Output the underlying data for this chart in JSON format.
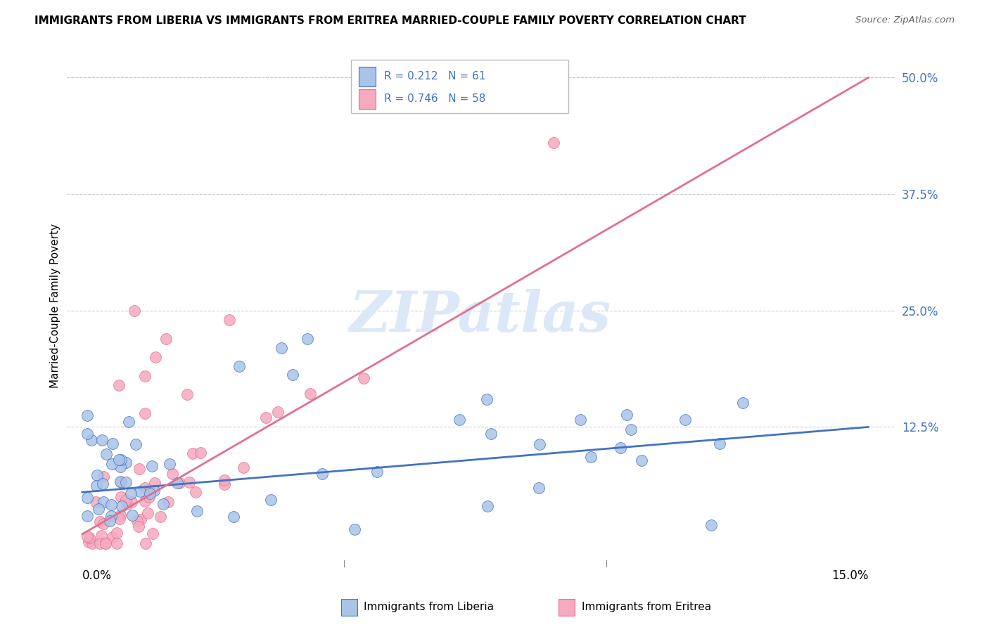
{
  "title": "IMMIGRANTS FROM LIBERIA VS IMMIGRANTS FROM ERITREA MARRIED-COUPLE FAMILY POVERTY CORRELATION CHART",
  "source": "Source: ZipAtlas.com",
  "ylabel": "Married-Couple Family Poverty",
  "color_liberia": "#aac4e8",
  "color_eritrea": "#f5aabf",
  "line_color_liberia": "#4472c4",
  "line_color_eritrea": "#e07090",
  "watermark": "ZIPatlas",
  "watermark_color": "#dce8f8",
  "legend_r1": "R = 0.212",
  "legend_n1": "N = 61",
  "legend_r2": "R = 0.746",
  "legend_n2": "N = 58",
  "label_liberia": "Immigrants from Liberia",
  "label_eritrea": "Immigrants from Eritrea",
  "xlim": [
    0.0,
    0.15
  ],
  "ylim": [
    0.0,
    0.52
  ],
  "yticks": [
    0.125,
    0.25,
    0.375,
    0.5
  ],
  "ytick_labels": [
    "12.5%",
    "25.0%",
    "37.5%",
    "50.0%"
  ],
  "xtick_left_label": "0.0%",
  "xtick_right_label": "15.0%"
}
